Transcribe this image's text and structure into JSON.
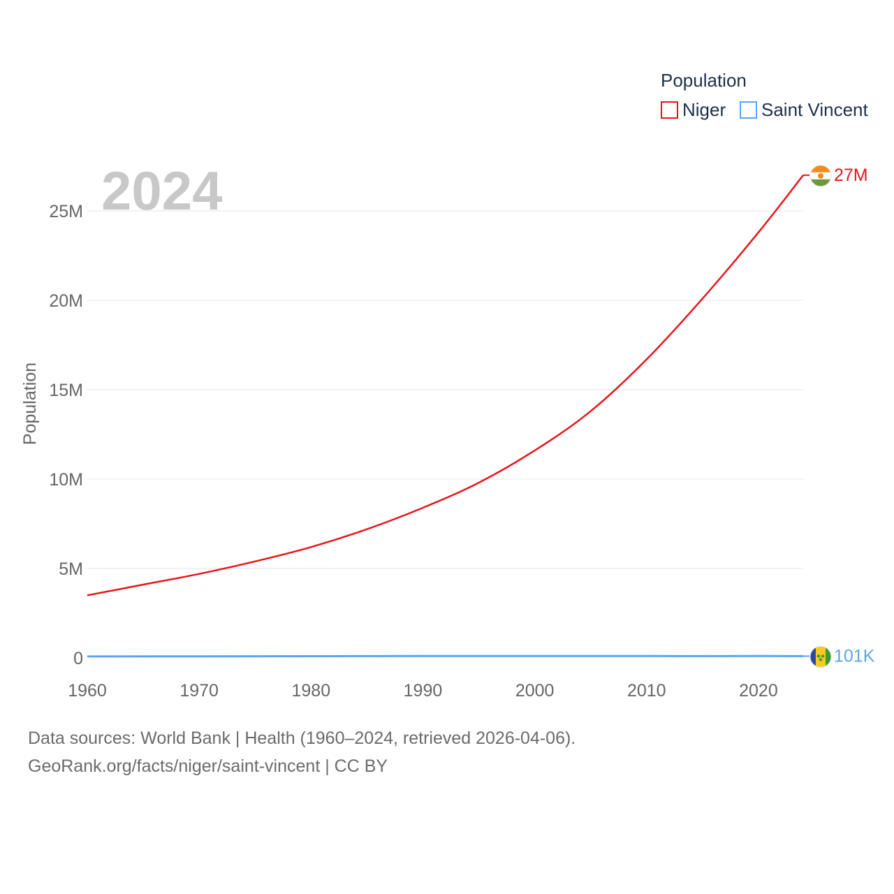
{
  "chart_data": {
    "type": "line",
    "title": "Population",
    "ylabel": "Population",
    "xlabel": "",
    "year_label": "2024",
    "xlim": [
      1960,
      2024
    ],
    "ylim": [
      0,
      27500000
    ],
    "x_ticks": [
      1960,
      1970,
      1980,
      1990,
      2000,
      2010,
      2020
    ],
    "x_tick_labels": [
      "1960",
      "1970",
      "1980",
      "1990",
      "2000",
      "2010",
      "2020"
    ],
    "y_ticks": [
      0,
      5000000,
      10000000,
      15000000,
      20000000,
      25000000
    ],
    "y_tick_labels": [
      "0",
      "5M",
      "10M",
      "15M",
      "20M",
      "25M"
    ],
    "grid": true,
    "legend_title": "Population",
    "legend_position": "top-right",
    "series": [
      {
        "name": "Niger",
        "color": "#e8141a",
        "end_label": "27M",
        "flag": "niger-flag-icon",
        "x": [
          1960,
          1965,
          1970,
          1975,
          1980,
          1985,
          1990,
          1995,
          2000,
          2005,
          2010,
          2015,
          2020,
          2024
        ],
        "values": [
          3500000,
          4100000,
          4700000,
          5400000,
          6200000,
          7200000,
          8400000,
          9800000,
          11600000,
          13800000,
          16700000,
          20100000,
          23800000,
          27000000
        ]
      },
      {
        "name": "Saint Vincent",
        "color": "#5aa5ef",
        "end_label": "101K",
        "flag": "saint-vincent-flag-icon",
        "x": [
          1960,
          1970,
          1980,
          1990,
          2000,
          2010,
          2020,
          2024
        ],
        "values": [
          81000,
          89000,
          99000,
          108000,
          108000,
          104000,
          104000,
          101000
        ]
      }
    ]
  },
  "footer": {
    "sources": "Data sources: World Bank | Health (1960–2024, retrieved 2026-04-06).",
    "credit": "GeoRank.org/facts/niger/saint-vincent | CC BY"
  }
}
